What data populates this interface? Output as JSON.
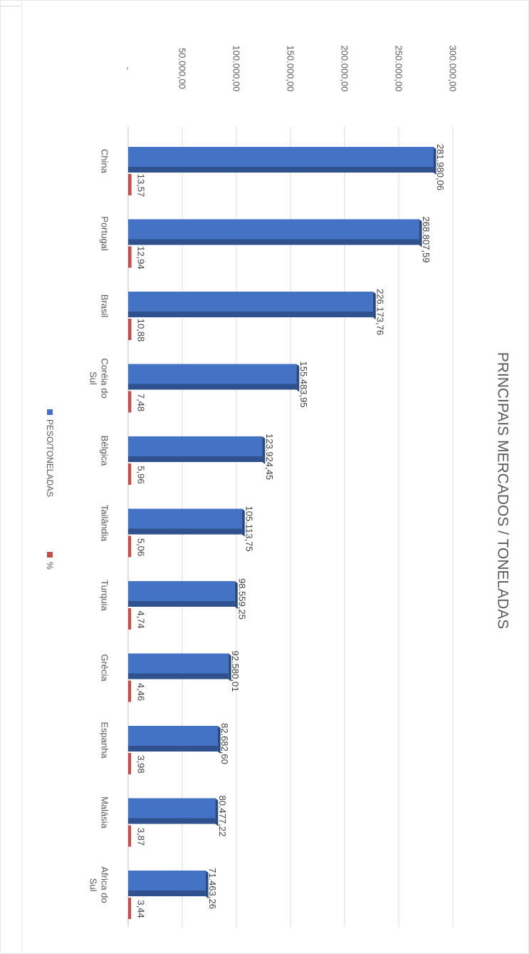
{
  "chart_data": {
    "type": "bar",
    "title": "PRINCIPAIS MERCADOS / TONELADAS",
    "categories": [
      "China",
      "Portugal",
      "Brasil",
      "Coréia do Sul",
      "Bélgica",
      "Tailândia",
      "Turquia",
      "Grécia",
      "Espanha",
      "Malásia",
      "Africa do Sul"
    ],
    "category_lines": [
      [
        "China"
      ],
      [
        "Portugal"
      ],
      [
        "Brasil"
      ],
      [
        "Coréia do",
        "Sul"
      ],
      [
        "Bélgica"
      ],
      [
        "Tailândia"
      ],
      [
        "Turquia"
      ],
      [
        "Grécia"
      ],
      [
        "Espanha"
      ],
      [
        "Malásia"
      ],
      [
        "Africa do",
        "Sul"
      ]
    ],
    "series": [
      {
        "name": "PESO/TONELADAS",
        "color": "#4472c4",
        "values": [
          281980.06,
          268807.59,
          226173.76,
          155483.95,
          123924.45,
          105113.75,
          98559.25,
          92580.01,
          82682.6,
          80477.22,
          71463.26
        ],
        "labels": [
          "281.980,06",
          "268.807,59",
          "226.173,76",
          "155.483,95",
          "123.924,45",
          "105.113,75",
          "98.559,25",
          "92.580,01",
          "82.682,60",
          "80.477,22",
          "71.463,26"
        ]
      },
      {
        "name": "%",
        "color": "#c0504d",
        "values": [
          13.57,
          12.94,
          10.88,
          7.48,
          5.96,
          5.06,
          4.74,
          4.46,
          3.98,
          3.87,
          3.44
        ],
        "labels": [
          "13,57",
          "12,94",
          "10,88",
          "7,48",
          "5,96",
          "5,06",
          "4,74",
          "4,46",
          "3,98",
          "3,87",
          "3,44"
        ]
      }
    ],
    "value_axis": {
      "min": 0,
      "max": 300000,
      "ticks": [
        0,
        50000,
        100000,
        150000,
        200000,
        250000,
        300000
      ],
      "tick_labels": [
        "-",
        "50.000,00",
        "100.000,00",
        "150.000,00",
        "200.000,00",
        "250.000,00",
        "300.000,00"
      ]
    },
    "grid": true,
    "legend_position": "bottom",
    "orientation": "rotated 90° clockwise (page viewed sideways)"
  }
}
